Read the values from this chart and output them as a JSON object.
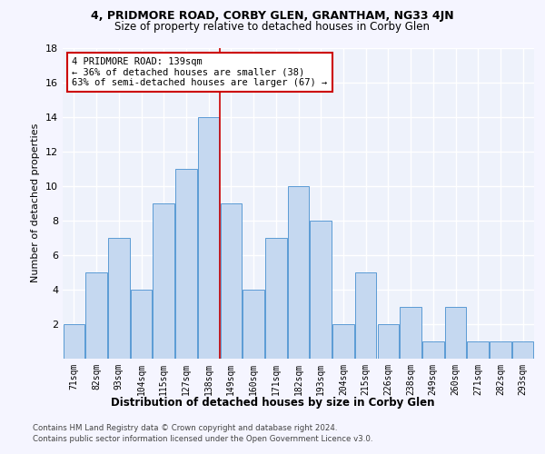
{
  "title": "4, PRIDMORE ROAD, CORBY GLEN, GRANTHAM, NG33 4JN",
  "subtitle": "Size of property relative to detached houses in Corby Glen",
  "xlabel": "Distribution of detached houses by size in Corby Glen",
  "ylabel": "Number of detached properties",
  "categories": [
    "71sqm",
    "82sqm",
    "93sqm",
    "104sqm",
    "115sqm",
    "127sqm",
    "138sqm",
    "149sqm",
    "160sqm",
    "171sqm",
    "182sqm",
    "193sqm",
    "204sqm",
    "215sqm",
    "226sqm",
    "238sqm",
    "249sqm",
    "260sqm",
    "271sqm",
    "282sqm",
    "293sqm"
  ],
  "values": [
    2,
    5,
    7,
    4,
    9,
    11,
    14,
    9,
    4,
    7,
    10,
    8,
    2,
    5,
    2,
    3,
    1,
    3,
    1,
    1,
    1
  ],
  "bar_color": "#c5d8f0",
  "bar_edge_color": "#5b9bd5",
  "background_color": "#eef2fb",
  "grid_color": "#ffffff",
  "annotation_line_color": "#cc0000",
  "annotation_box_text": "4 PRIDMORE ROAD: 139sqm\n← 36% of detached houses are smaller (38)\n63% of semi-detached houses are larger (67) →",
  "annotation_box_color": "#ffffff",
  "annotation_box_edge_color": "#cc0000",
  "ylim": [
    0,
    18
  ],
  "yticks": [
    0,
    2,
    4,
    6,
    8,
    10,
    12,
    14,
    16,
    18
  ],
  "footer_line1": "Contains HM Land Registry data © Crown copyright and database right 2024.",
  "footer_line2": "Contains public sector information licensed under the Open Government Licence v3.0."
}
